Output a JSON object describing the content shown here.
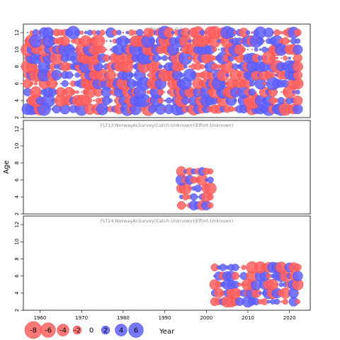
{
  "chart_data": {
    "type": "scatter",
    "subtype": "bubble-residuals",
    "xlabel": "Year",
    "ylabel": "Age",
    "xlim": [
      1956,
      2025
    ],
    "x_ticks": [
      1960,
      1970,
      1980,
      1990,
      2000,
      2010,
      2020
    ],
    "colors": {
      "negative": "#ff6060",
      "positive": "#6060ff"
    },
    "legend": {
      "placement": "bottom-left",
      "values": [
        -8,
        -6,
        -4,
        -2,
        0,
        2,
        4,
        6
      ],
      "labels": [
        "-8",
        "-6",
        "-4",
        "-2",
        "0",
        "2",
        "4",
        "6"
      ]
    },
    "panels": [
      {
        "title": "Residual catch",
        "ylim": [
          2,
          13
        ],
        "y_ticks": [
          2,
          4,
          6,
          8,
          10,
          12
        ],
        "years": [
          1957,
          2022
        ],
        "ages": [
          3,
          12
        ],
        "seed": 7
      },
      {
        "title": "FLT13:NorwayAcSurvey(Catch:Unknown)(Effort:Unknown)",
        "ylim": [
          2,
          13
        ],
        "y_ticks": [
          2,
          4,
          6,
          8,
          10,
          12
        ],
        "years": [
          1994,
          2001
        ],
        "ages": [
          3,
          7
        ],
        "seed": 21
      },
      {
        "title": "FLT14:NorwayAcSurvey(Catch:Unknown)(Effort:Unknown)",
        "ylim": [
          2,
          13
        ],
        "y_ticks": [
          2,
          4,
          6,
          8,
          10,
          12
        ],
        "years": [
          2002,
          2022
        ],
        "ages": [
          3,
          7
        ],
        "seed": 43
      }
    ]
  }
}
